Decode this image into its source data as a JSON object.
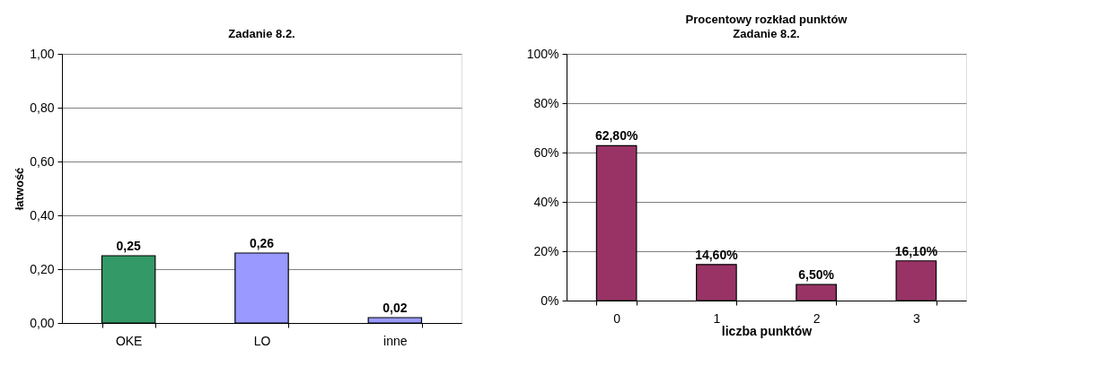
{
  "chart_data": [
    {
      "type": "bar",
      "title": "Zadanie 8.2.",
      "ylabel": "łatwość",
      "categories": [
        "OKE",
        "LO",
        "inne"
      ],
      "values": [
        0.25,
        0.26,
        0.02
      ],
      "colors": [
        "#339966",
        "#9999ff",
        "#9999ff"
      ],
      "value_labels": [
        "0,25",
        "0,26",
        "0,02"
      ],
      "ylim": [
        0,
        1
      ],
      "yticks": [
        {
          "value": 0,
          "label": "0,00"
        },
        {
          "value": 0.2,
          "label": "0,20"
        },
        {
          "value": 0.4,
          "label": "0,40"
        },
        {
          "value": 0.6,
          "label": "0,60"
        },
        {
          "value": 0.8,
          "label": "0,80"
        },
        {
          "value": 1,
          "label": "1,00"
        }
      ],
      "grid": "y"
    },
    {
      "type": "bar",
      "title": "Procentowy rozkład punktów",
      "subtitle": "Zadanie 8.2.",
      "xlabel": "liczba punktów",
      "categories": [
        "0",
        "1",
        "2",
        "3"
      ],
      "values": [
        62.8,
        14.6,
        6.5,
        16.1
      ],
      "colors": [
        "#993366",
        "#993366",
        "#993366",
        "#993366"
      ],
      "value_labels": [
        "62,80%",
        "14,60%",
        "6,50%",
        "16,10%"
      ],
      "ylim": [
        0,
        100
      ],
      "yticks": [
        {
          "value": 0,
          "label": "0%"
        },
        {
          "value": 20,
          "label": "20%"
        },
        {
          "value": 40,
          "label": "40%"
        },
        {
          "value": 60,
          "label": "60%"
        },
        {
          "value": 80,
          "label": "80%"
        },
        {
          "value": 100,
          "label": "100%"
        }
      ],
      "grid": "y"
    }
  ]
}
